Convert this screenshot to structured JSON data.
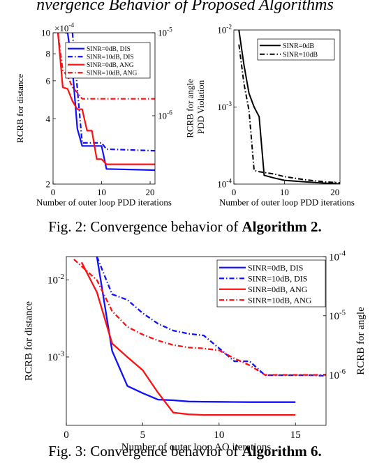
{
  "header": {
    "text": "nvergence Behavior of Proposed Algorithms"
  },
  "captions": {
    "fig2": {
      "prefix": "Fig. 2: Convergence behavior of ",
      "bold": "Algorithm 2."
    },
    "fig3": {
      "prefix": "Fig. 3: Convergence behavior of ",
      "bold": "Algorithm 6."
    }
  },
  "colors": {
    "blue": "#1010ff",
    "red": "#ff1010",
    "black": "#000000"
  },
  "chart_data": [
    {
      "id": "c1",
      "type": "line",
      "xlabel": "Number of outer loop PDD iterations",
      "ylabel": "RCRB for distance",
      "y2label": "RCRB for angle",
      "xlim": [
        0,
        21
      ],
      "ylim": [
        2,
        10
      ],
      "yscale": "log",
      "y2lim": [
        1.5e-07,
        1e-05
      ],
      "y2scale": "log",
      "xticks": [
        0,
        10,
        20
      ],
      "xticklabels": [
        "0",
        "10",
        "20"
      ],
      "yticks": [
        2,
        4,
        6,
        8,
        10
      ],
      "yticklabels": [
        "2",
        "4",
        "6",
        "8",
        "10"
      ],
      "yexponent": "×10",
      "yexponent_power": "-4",
      "y2ticks": [
        1e-06,
        1e-05
      ],
      "y2ticklabels": [
        [
          "10",
          "-6"
        ],
        [
          "10",
          "-5"
        ]
      ],
      "grid": false,
      "legend": "top-right",
      "series": [
        {
          "name": "SINR=0dB, DIS",
          "color": "blue",
          "dash": "solid",
          "axis": "left",
          "x": [
            2.5,
            3,
            4,
            5,
            6,
            10,
            11,
            21
          ],
          "y": [
            10,
            10,
            6.8,
            3.6,
            3.0,
            3.0,
            2.35,
            2.32
          ]
        },
        {
          "name": "SINR=10dB, DIS",
          "color": "blue",
          "dash": "dashdot",
          "axis": "left",
          "x": [
            4,
            5,
            6,
            10,
            11,
            21
          ],
          "y": [
            10,
            5.5,
            3.1,
            3.1,
            2.9,
            2.85
          ]
        },
        {
          "name": "SINR=0dB, ANG",
          "color": "red",
          "dash": "solid",
          "axis": "right",
          "x": [
            1,
            2,
            3,
            4,
            5,
            6,
            7,
            8,
            9,
            10,
            11,
            21
          ],
          "y": [
            1e-05,
            2.2e-06,
            2.1e-06,
            1.5e-06,
            1.2e-06,
            1.2e-06,
            6.6e-07,
            6.6e-07,
            3e-07,
            3e-07,
            2.6e-07,
            2.6e-07
          ]
        },
        {
          "name": "SINR=10dB, ANG",
          "color": "red",
          "dash": "dashdot",
          "axis": "right",
          "x": [
            1,
            2,
            3,
            4,
            5,
            6,
            21
          ],
          "y": [
            1e-05,
            3.5e-06,
            3e-06,
            2.2e-06,
            1.9e-06,
            1.6e-06,
            1.6e-06
          ]
        }
      ]
    },
    {
      "id": "c2",
      "type": "line",
      "xlabel": "Number of outer loop PDD iterations",
      "ylabel": "PDD Violation",
      "xlim": [
        0,
        21
      ],
      "ylim": [
        0.0001,
        0.01
      ],
      "yscale": "log",
      "xticks": [
        0,
        10,
        20
      ],
      "xticklabels": [
        "0",
        "10",
        "20"
      ],
      "yticks": [
        0.0001,
        0.001,
        0.01
      ],
      "yticklabels": [
        [
          "10",
          "-4"
        ],
        [
          "10",
          "-3"
        ],
        [
          "10",
          "-2"
        ]
      ],
      "grid": false,
      "legend": "top-right",
      "series": [
        {
          "name": "SINR=0dB",
          "color": "black",
          "dash": "solid",
          "x": [
            1,
            2,
            3,
            4,
            5,
            6,
            8,
            10,
            14,
            18,
            21
          ],
          "y": [
            0.01,
            0.0035,
            0.0015,
            0.001,
            0.00075,
            0.00013,
            0.00012,
            0.000112,
            0.000107,
            0.000103,
            0.0001
          ]
        },
        {
          "name": "SINR=10dB",
          "color": "black",
          "dash": "dashdot",
          "x": [
            1,
            2,
            3,
            4,
            5,
            8,
            10,
            14,
            18,
            21
          ],
          "y": [
            0.0065,
            0.002,
            0.0009,
            0.00015,
            0.000145,
            0.000135,
            0.000125,
            0.000114,
            0.000107,
            0.000104
          ]
        }
      ]
    },
    {
      "id": "c3",
      "type": "line",
      "xlabel": "Number of outer loop AO iterations",
      "ylabel": "RCRB for distance",
      "y2label": "RCRB for angle",
      "xlim": [
        0,
        17
      ],
      "ylim": [
        0.00013,
        0.02
      ],
      "yscale": "log",
      "y2lim": [
        1.4e-07,
        0.0001
      ],
      "y2scale": "log",
      "xticks": [
        0,
        5,
        10,
        15
      ],
      "xticklabels": [
        "0",
        "5",
        "10",
        "15"
      ],
      "yticks": [
        0.001,
        0.01
      ],
      "yticklabels": [
        [
          "10",
          "-3"
        ],
        [
          "10",
          "-2"
        ]
      ],
      "y2ticks": [
        1e-06,
        1e-05,
        0.0001
      ],
      "y2ticklabels": [
        [
          "10",
          "-6"
        ],
        [
          "10",
          "-5"
        ],
        [
          "10",
          "-4"
        ]
      ],
      "grid": false,
      "legend": "top-right",
      "series": [
        {
          "name": "SINR=0dB, DIS",
          "color": "blue",
          "dash": "solid",
          "axis": "left",
          "x": [
            2,
            3,
            4,
            5,
            6,
            7,
            8,
            9,
            10,
            11,
            12,
            13,
            14,
            15
          ],
          "y": [
            0.02,
            0.0012,
            0.00042,
            0.00034,
            0.00028,
            0.000275,
            0.000265,
            0.000263,
            0.000262,
            0.000261,
            0.00026,
            0.00026,
            0.00026,
            0.00026
          ]
        },
        {
          "name": "SINR=10dB, DIS",
          "color": "blue",
          "dash": "dashdot",
          "axis": "left",
          "x": [
            2,
            3,
            4,
            5,
            6,
            7,
            8,
            9,
            10,
            11,
            12,
            13,
            14,
            15,
            16,
            17
          ],
          "y": [
            0.02,
            0.0065,
            0.0055,
            0.0037,
            0.0027,
            0.0022,
            0.002,
            0.0019,
            0.0013,
            0.00088,
            0.00088,
            0.00058,
            0.00058,
            0.00058,
            0.00058,
            0.00057
          ]
        },
        {
          "name": "SINR=0dB, ANG",
          "color": "red",
          "dash": "solid",
          "axis": "right",
          "x": [
            1,
            2,
            3,
            4,
            5,
            6,
            7,
            8,
            9,
            10,
            11,
            12,
            13,
            14,
            15
          ],
          "y": [
            8e-05,
            2.5e-05,
            3.4e-06,
            2e-06,
            1.2e-06,
            5e-07,
            2.3e-07,
            2.15e-07,
            2.1e-07,
            2.1e-07,
            2.1e-07,
            2.1e-07,
            2.1e-07,
            2.1e-07,
            2.1e-07
          ]
        },
        {
          "name": "SINR=10dB, ANG",
          "color": "red",
          "dash": "dashdot",
          "axis": "right",
          "x": [
            0.5,
            2,
            3,
            4,
            5,
            6,
            7,
            8,
            9,
            10,
            11,
            12,
            13,
            14,
            15,
            16,
            17
          ],
          "y": [
            9e-05,
            4e-05,
            1.2e-05,
            6.5e-06,
            4.8e-06,
            3.8e-06,
            3.2e-06,
            2.9e-06,
            2.8e-06,
            2.6e-06,
            1.9e-06,
            1.45e-06,
            1e-06,
            1e-06,
            1e-06,
            1e-06,
            1e-06
          ]
        }
      ]
    }
  ]
}
